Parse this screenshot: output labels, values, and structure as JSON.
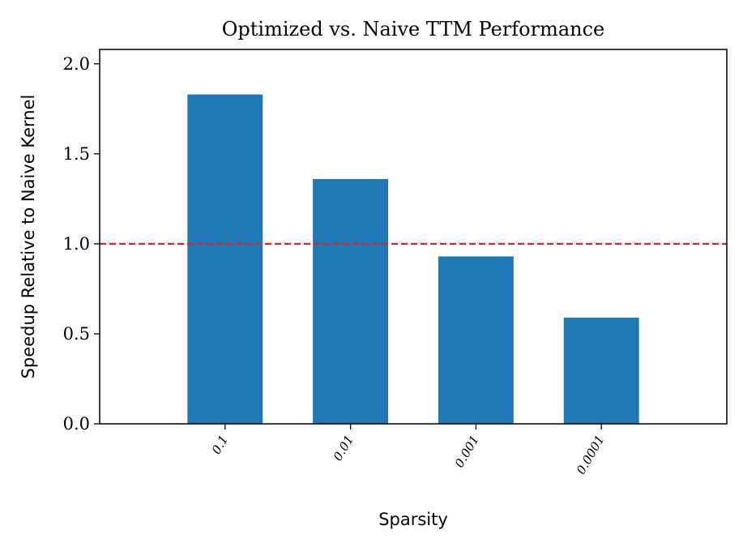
{
  "chart_data": {
    "type": "bar",
    "title": "Optimized vs. Naive TTM Performance",
    "xlabel": "Sparsity",
    "ylabel": "Speedup Relative to Naive Kernel",
    "categories": [
      "0.1",
      "0.01",
      "0.001",
      "0.0001"
    ],
    "values": [
      1.83,
      1.36,
      0.93,
      0.59
    ],
    "ylim": [
      0,
      2.08
    ],
    "yticks": [
      "0.0",
      "0.5",
      "1.0",
      "1.5",
      "2.0"
    ],
    "reference_line": {
      "y": 1.0,
      "style": "dashed",
      "color": "#d62728"
    },
    "bar_color": "#1f77b4",
    "grid": false
  }
}
